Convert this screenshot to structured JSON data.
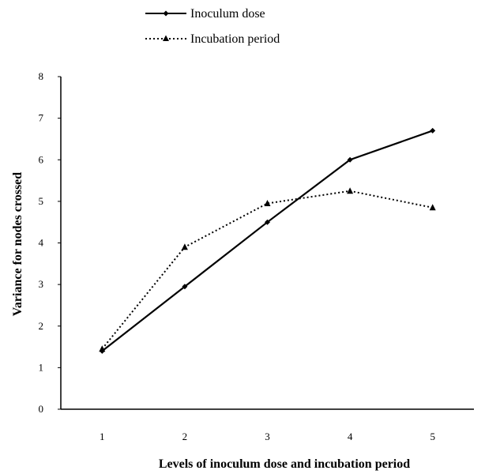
{
  "chart_data": {
    "type": "line",
    "xlabel": "Levels of inoculum dose and incubation period",
    "ylabel": "Variance for nodes crossed",
    "x": [
      1,
      2,
      3,
      4,
      5
    ],
    "xlim": [
      0.5,
      5.5
    ],
    "ylim": [
      0,
      8
    ],
    "yticks": [
      0,
      1,
      2,
      3,
      4,
      5,
      6,
      7,
      8
    ],
    "grid": false,
    "legend_position": "top",
    "series": [
      {
        "name": "Inoculum dose",
        "values": [
          1.4,
          2.95,
          4.5,
          6.0,
          6.7
        ],
        "style": "solid",
        "marker": "diamond",
        "color": "#000000"
      },
      {
        "name": "Incubation period",
        "values": [
          1.45,
          3.9,
          4.95,
          5.25,
          4.85
        ],
        "style": "dotted",
        "marker": "triangle",
        "color": "#000000"
      }
    ]
  }
}
